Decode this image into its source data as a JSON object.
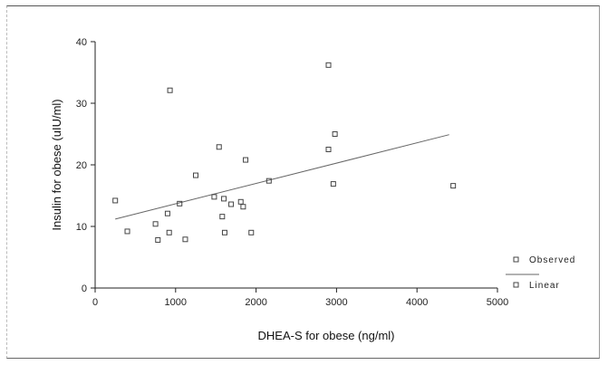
{
  "chart_data": {
    "type": "scatter",
    "title": "",
    "xlabel": "DHEA-S for obese (ng/ml)",
    "ylabel": "Insulin for obese  (uIU/ml)",
    "xlim": [
      0,
      5000
    ],
    "ylim": [
      0,
      40
    ],
    "x_ticks": [
      0,
      1000,
      2000,
      3000,
      4000,
      5000
    ],
    "y_ticks": [
      0,
      10,
      20,
      30,
      40
    ],
    "grid": false,
    "legend_position": "right",
    "series": [
      {
        "name": "Observed",
        "marker": "square-open",
        "points": [
          {
            "x": 250,
            "y": 14.2
          },
          {
            "x": 400,
            "y": 9.2
          },
          {
            "x": 750,
            "y": 10.4
          },
          {
            "x": 780,
            "y": 7.8
          },
          {
            "x": 900,
            "y": 12.1
          },
          {
            "x": 930,
            "y": 32.1
          },
          {
            "x": 920,
            "y": 9.0
          },
          {
            "x": 1050,
            "y": 13.7
          },
          {
            "x": 1120,
            "y": 7.9
          },
          {
            "x": 1250,
            "y": 18.3
          },
          {
            "x": 1480,
            "y": 14.8
          },
          {
            "x": 1540,
            "y": 22.9
          },
          {
            "x": 1580,
            "y": 11.6
          },
          {
            "x": 1600,
            "y": 14.5
          },
          {
            "x": 1610,
            "y": 9.0
          },
          {
            "x": 1690,
            "y": 13.6
          },
          {
            "x": 1810,
            "y": 14.0
          },
          {
            "x": 1840,
            "y": 13.2
          },
          {
            "x": 1870,
            "y": 20.8
          },
          {
            "x": 1940,
            "y": 9.0
          },
          {
            "x": 2160,
            "y": 17.4
          },
          {
            "x": 2900,
            "y": 36.2
          },
          {
            "x": 2900,
            "y": 22.5
          },
          {
            "x": 2960,
            "y": 16.9
          },
          {
            "x": 2980,
            "y": 25.0
          },
          {
            "x": 4450,
            "y": 16.6
          }
        ]
      },
      {
        "name": "Linear",
        "type": "line",
        "points": [
          {
            "x": 250,
            "y": 11.2
          },
          {
            "x": 4400,
            "y": 24.9
          }
        ]
      }
    ]
  },
  "colors": {
    "marker": "#444444",
    "line": "#666666",
    "axis": "#222222"
  }
}
